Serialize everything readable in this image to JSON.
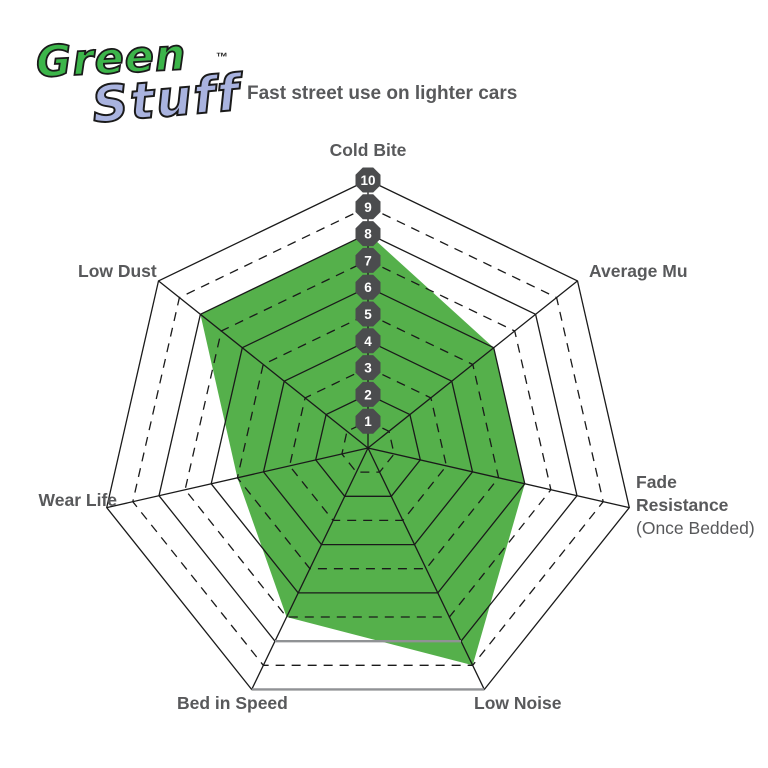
{
  "logo": {
    "word1": "Green",
    "word2": "Stuff",
    "trademark": "™",
    "word1_color": "#3cb54a",
    "word2_color": "#a9b3df"
  },
  "subtitle": "Fast street use on lighter cars",
  "chart_data": {
    "type": "radar",
    "title": "Fast street use on lighter cars",
    "scale": {
      "min": 0,
      "max": 10,
      "ring_labels": [
        "1",
        "2",
        "3",
        "4",
        "5",
        "6",
        "7",
        "8",
        "9",
        "10"
      ]
    },
    "axes": [
      {
        "label": "Cold Bite",
        "value": 8
      },
      {
        "label": "Average Mu",
        "value": 6
      },
      {
        "label": "Fade Resistance",
        "sublabel": "(Once Bedded)",
        "value": 6
      },
      {
        "label": "Low Noise",
        "value": 9
      },
      {
        "label": "Bed in Speed",
        "value": 7
      },
      {
        "label": "Wear Life",
        "value": 5
      },
      {
        "label": "Low Dust",
        "value": 8
      }
    ],
    "grid": {
      "solid_rings": "even",
      "dashed_rings": "odd",
      "ring_color": "#1a1a1a",
      "gray_bottom_rings": [
        8,
        10
      ],
      "outer_bottom_edge_color": "#909295",
      "legend": "none"
    },
    "fill_color": "#55b04b",
    "badge_color": "#4b4c4e",
    "badge_text_color": "#ffffff",
    "label_color": "#58595b"
  }
}
